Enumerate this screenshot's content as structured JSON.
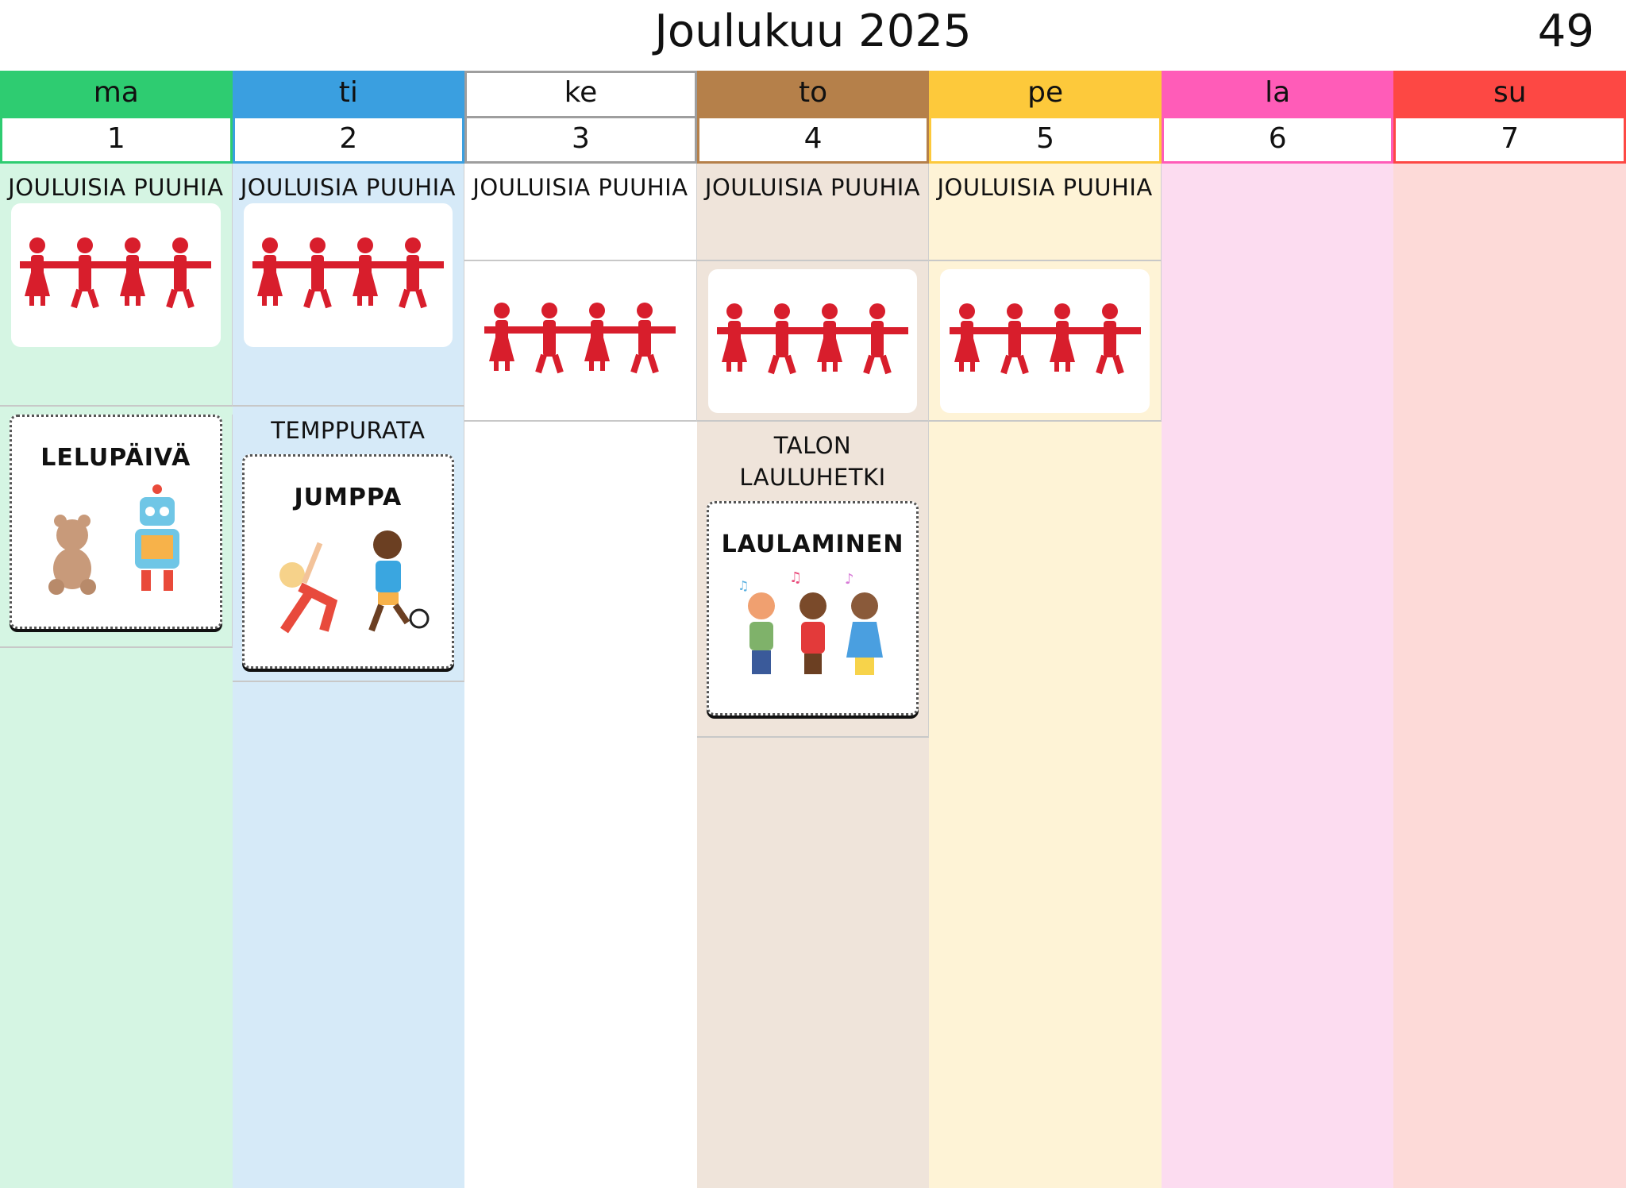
{
  "header": {
    "title": "Joulukuu 2025",
    "week_number": "49"
  },
  "days": [
    {
      "abbr": "ma",
      "date": "1",
      "color": "#2ecc71",
      "bg": "#d5f5e3"
    },
    {
      "abbr": "ti",
      "date": "2",
      "color": "#3a9fe0",
      "bg": "#d6eaf8"
    },
    {
      "abbr": "ke",
      "date": "3",
      "color": "#ffffff",
      "bg": "#ffffff",
      "border": "#9e9e9e"
    },
    {
      "abbr": "to",
      "date": "4",
      "color": "#b5804a",
      "bg": "#efe4da"
    },
    {
      "abbr": "pe",
      "date": "5",
      "color": "#fdc93b",
      "bg": "#fef3d6"
    },
    {
      "abbr": "la",
      "date": "6",
      "color": "#ff5cb8",
      "bg": "#fcdcf0"
    },
    {
      "abbr": "su",
      "date": "7",
      "color": "#fd4844",
      "bg": "#fddad8"
    }
  ],
  "events": {
    "christmas": "JOULUISIA PUUHIA",
    "toy_day": "LELUPÄIVÄ",
    "obstacle": "TEMPPURATA",
    "gym": "JUMPPA",
    "house_song": "TALON LAULUHETKI",
    "singing": "LAULAMINEN"
  },
  "icons": {
    "chain": "paper-doll-chain-icon",
    "toys": "teddy-robot-icon",
    "gym": "kids-exercise-icon",
    "sing": "kids-singing-icon"
  },
  "chain_color": "#d81e2c"
}
